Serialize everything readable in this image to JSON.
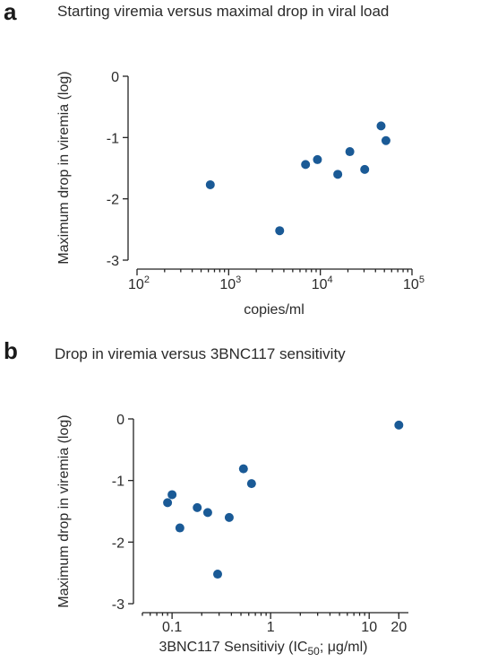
{
  "chart_data": [
    {
      "type": "scatter",
      "panel_letter": "a",
      "title": "Starting viremia versus maximal drop in viral load",
      "xlabel": "copies/ml",
      "ylabel": "Maximum drop in viremia (log)",
      "x_scale": "log",
      "xlim": [
        100,
        100000
      ],
      "ylim": [
        -3,
        0
      ],
      "x_ticks": [
        {
          "value": 100,
          "base": "10",
          "exp": "2"
        },
        {
          "value": 1000,
          "base": "10",
          "exp": "3"
        },
        {
          "value": 10000,
          "base": "10",
          "exp": "4"
        },
        {
          "value": 100000,
          "base": "10",
          "exp": "5"
        }
      ],
      "y_ticks": [
        {
          "value": 0,
          "label": "0"
        },
        {
          "value": -1,
          "label": "-1"
        },
        {
          "value": -2,
          "label": "-2"
        },
        {
          "value": -3,
          "label": "-3"
        }
      ],
      "marker_color": "#1a5a96",
      "points": [
        {
          "x": 630,
          "y": -1.77
        },
        {
          "x": 3600,
          "y": -2.52
        },
        {
          "x": 6900,
          "y": -1.44
        },
        {
          "x": 9300,
          "y": -1.36
        },
        {
          "x": 15500,
          "y": -1.6
        },
        {
          "x": 21000,
          "y": -1.23
        },
        {
          "x": 30500,
          "y": -1.52
        },
        {
          "x": 46000,
          "y": -0.81
        },
        {
          "x": 52000,
          "y": -1.05
        }
      ]
    },
    {
      "type": "scatter",
      "panel_letter": "b",
      "title": "Drop in viremia versus 3BNC117 sensitivity",
      "xlabel_main": "3BNC117 Sensitiviy (IC",
      "xlabel_sub": "50",
      "xlabel_end": "; μg/ml)",
      "ylabel": "Maximum drop in viremia (log)",
      "x_scale": "log",
      "xlim": [
        0.05,
        25
      ],
      "ylim": [
        -3,
        0
      ],
      "x_ticks": [
        {
          "value": 0.1,
          "label": "0.1"
        },
        {
          "value": 1,
          "label": "1"
        },
        {
          "value": 10,
          "label": "10"
        },
        {
          "value": 20,
          "label": "20"
        }
      ],
      "y_ticks": [
        {
          "value": 0,
          "label": "0"
        },
        {
          "value": -1,
          "label": "-1"
        },
        {
          "value": -2,
          "label": "-2"
        },
        {
          "value": -3,
          "label": "-3"
        }
      ],
      "marker_color": "#1a5a96",
      "points": [
        {
          "x": 0.09,
          "y": -1.36
        },
        {
          "x": 0.1,
          "y": -1.23
        },
        {
          "x": 0.12,
          "y": -1.77
        },
        {
          "x": 0.18,
          "y": -1.44
        },
        {
          "x": 0.23,
          "y": -1.52
        },
        {
          "x": 0.29,
          "y": -2.52
        },
        {
          "x": 0.38,
          "y": -1.6
        },
        {
          "x": 0.53,
          "y": -0.81
        },
        {
          "x": 0.64,
          "y": -1.05
        },
        {
          "x": 20,
          "y": -0.1
        }
      ]
    }
  ]
}
